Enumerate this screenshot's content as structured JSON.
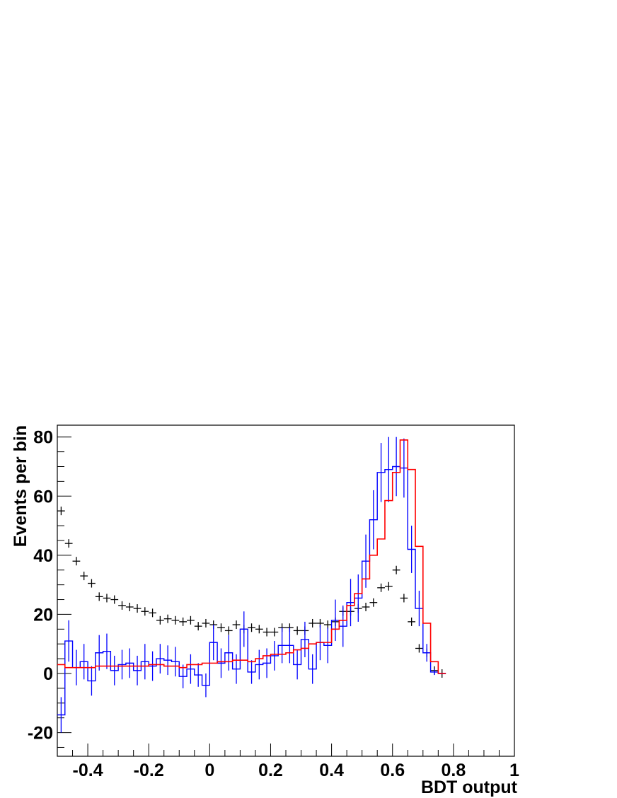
{
  "chart_data": {
    "type": "histogram",
    "xlabel": "BDT output",
    "ylabel": "Events per bin",
    "xlim": [
      -0.5,
      1.0
    ],
    "ylim": [
      -28,
      84
    ],
    "xticks": [
      -0.4,
      -0.2,
      0,
      0.2,
      0.4,
      0.6,
      0.8,
      1
    ],
    "xtick_labels": [
      "-0.4",
      "-0.2",
      "0",
      "0.2",
      "0.4",
      "0.6",
      "0.8",
      "1"
    ],
    "yticks": [
      -20,
      0,
      20,
      40,
      60,
      80
    ],
    "ytick_labels": [
      "-20",
      "0",
      "20",
      "40",
      "60",
      "80"
    ],
    "bin_edges_start": -0.5,
    "bin_width": 0.025,
    "series": [
      {
        "style": "black crosses",
        "color": "#000000",
        "values": [
          55,
          44,
          38,
          33,
          30.5,
          26,
          25.5,
          25,
          23,
          22.5,
          22,
          21,
          20.5,
          18,
          18.5,
          18,
          17.5,
          18,
          16,
          17,
          16.5,
          15.5,
          14.5,
          16.5,
          15,
          15.5,
          15,
          14,
          14,
          15.5,
          15.5,
          14.5,
          14.5,
          17,
          17,
          16.5,
          17.5,
          21,
          21,
          22,
          22.5,
          24,
          29,
          29.5,
          35,
          25.5,
          17.5,
          8.5,
          7,
          1,
          0
        ]
      },
      {
        "style": "blue step histogram with error bars",
        "color": "#0000ff",
        "values": [
          -14,
          11,
          2,
          4,
          -2.5,
          7,
          7.5,
          1,
          3,
          3.5,
          1,
          4,
          2.5,
          5,
          4.5,
          4,
          -1,
          1.5,
          -0.5,
          -4,
          10.5,
          3.5,
          7,
          1.5,
          15,
          0.5,
          3,
          3.5,
          6,
          9.5,
          9.5,
          3,
          11.5,
          1.5,
          10.5,
          9.5,
          18,
          16,
          24,
          25.5,
          38,
          52,
          68,
          69,
          70,
          69.5,
          42,
          22,
          7,
          0.5,
          0
        ],
        "errors": [
          6,
          7,
          6,
          6,
          5,
          6,
          6,
          5,
          5,
          5,
          5,
          6,
          5,
          5,
          5,
          5,
          4,
          5,
          4,
          4,
          6,
          5,
          6,
          5,
          6,
          4,
          5,
          5,
          5,
          6,
          6,
          5,
          6,
          5,
          6,
          6,
          7,
          7,
          8,
          8,
          9,
          10,
          10,
          11,
          10,
          10,
          8,
          6,
          3,
          1,
          0
        ]
      },
      {
        "style": "red step histogram",
        "color": "#ff0000",
        "values": [
          3,
          2,
          2,
          2,
          2,
          2.5,
          2.5,
          2.5,
          2.5,
          2.5,
          2.5,
          2.5,
          3,
          3,
          2.5,
          2.5,
          2,
          3,
          3,
          3.5,
          3.5,
          4,
          4,
          4.5,
          4.5,
          4,
          5,
          6,
          6.5,
          6.5,
          7,
          8,
          8.5,
          10,
          10.5,
          10.5,
          15,
          18,
          23,
          27,
          32,
          40,
          45.5,
          58.5,
          68,
          79,
          69,
          43,
          17,
          4,
          0
        ]
      }
    ]
  }
}
